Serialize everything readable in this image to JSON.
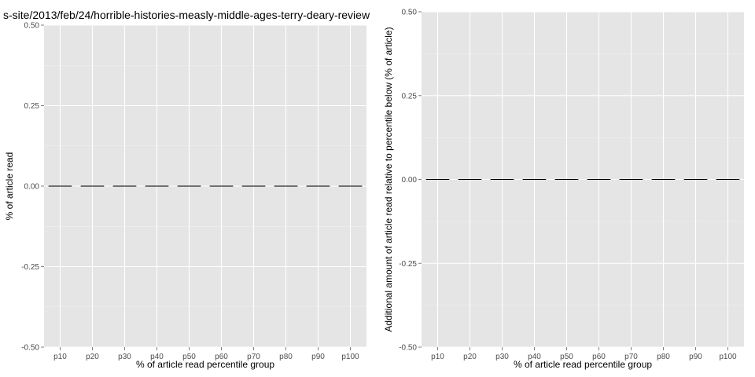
{
  "chart_data": [
    {
      "type": "bar",
      "title": "s-site/2013/feb/24/horrible-histories-measly-middle-ages-terry-deary-review",
      "xlabel": "% of article read percentile group",
      "ylabel": "% of article read",
      "categories": [
        "p10",
        "p20",
        "p30",
        "p40",
        "p50",
        "p60",
        "p70",
        "p80",
        "p90",
        "p100"
      ],
      "values": [
        0,
        0,
        0,
        0,
        0,
        0,
        0,
        0,
        0,
        0
      ],
      "ylim": [
        -0.5,
        0.5
      ],
      "yticks": [
        "-0.50",
        "-0.25",
        "0.00",
        "0.25",
        "0.50"
      ],
      "grid": true,
      "colors": {
        "panel": "#e5e5e5",
        "grid_major": "#ffffff",
        "grid_minor": "#f2f2f2",
        "bar_outline": "#000000"
      }
    },
    {
      "type": "bar",
      "title": "",
      "xlabel": "% of article read percentile group",
      "ylabel": "Additional amount of article read relative to percentile below (% of article)",
      "categories": [
        "p10",
        "p20",
        "p30",
        "p40",
        "p50",
        "p60",
        "p70",
        "p80",
        "p90",
        "p100"
      ],
      "values": [
        0,
        0,
        0,
        0,
        0,
        0,
        0,
        0,
        0,
        0
      ],
      "ylim": [
        -0.5,
        0.5
      ],
      "yticks": [
        "-0.50",
        "-0.25",
        "0.00",
        "0.25",
        "0.50"
      ],
      "grid": true,
      "colors": {
        "panel": "#e5e5e5",
        "grid_major": "#ffffff",
        "grid_minor": "#f2f2f2",
        "bar_outline": "#000000"
      }
    }
  ]
}
